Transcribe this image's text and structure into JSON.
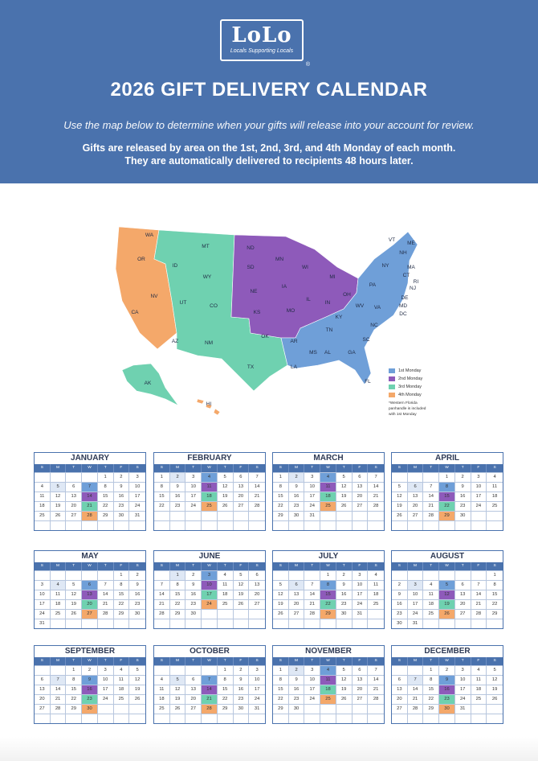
{
  "header": {
    "logo_text": "LoLo",
    "logo_tagline": "Locals Supporting Locals",
    "logo_mark": "®",
    "title": "2026 GIFT DELIVERY CALENDAR",
    "subtitle": "Use the map below to determine when your gifts will release into your account for review.",
    "info_line1": "Gifts are released by area on the 1st, 2nd, 3rd, and 4th Monday of each month.",
    "info_line2": "They are automatically delivered to recipients 48 hours later."
  },
  "colors": {
    "brand": "#4a72ad",
    "monday1": "#6f9fd8",
    "monday2": "#8e5aba",
    "monday3": "#6fd1b0",
    "monday4": "#f4a86a"
  },
  "map": {
    "states": [
      {
        "abbr": "WA",
        "group": 4
      },
      {
        "abbr": "OR",
        "group": 4
      },
      {
        "abbr": "CA",
        "group": 4
      },
      {
        "abbr": "NV",
        "group": 4
      },
      {
        "abbr": "ID",
        "group": 3
      },
      {
        "abbr": "MT",
        "group": 3
      },
      {
        "abbr": "WY",
        "group": 3
      },
      {
        "abbr": "UT",
        "group": 3
      },
      {
        "abbr": "CO",
        "group": 3
      },
      {
        "abbr": "AZ",
        "group": 3
      },
      {
        "abbr": "NM",
        "group": 3
      },
      {
        "abbr": "TX",
        "group": 3
      },
      {
        "abbr": "AK",
        "group": 3
      },
      {
        "abbr": "HI",
        "group": 4
      },
      {
        "abbr": "ND",
        "group": 2
      },
      {
        "abbr": "SD",
        "group": 2
      },
      {
        "abbr": "NE",
        "group": 2
      },
      {
        "abbr": "KS",
        "group": 2
      },
      {
        "abbr": "OK",
        "group": 2
      },
      {
        "abbr": "MN",
        "group": 2
      },
      {
        "abbr": "IA",
        "group": 2
      },
      {
        "abbr": "MO",
        "group": 2
      },
      {
        "abbr": "WI",
        "group": 2
      },
      {
        "abbr": "IL",
        "group": 2
      },
      {
        "abbr": "MI",
        "group": 2
      },
      {
        "abbr": "IN",
        "group": 2
      },
      {
        "abbr": "OH",
        "group": 2
      },
      {
        "abbr": "KY",
        "group": 2
      },
      {
        "abbr": "AR",
        "group": 1
      },
      {
        "abbr": "LA",
        "group": 1
      },
      {
        "abbr": "MS",
        "group": 1
      },
      {
        "abbr": "AL",
        "group": 1
      },
      {
        "abbr": "GA",
        "group": 1
      },
      {
        "abbr": "FL",
        "group": 1
      },
      {
        "abbr": "SC",
        "group": 1
      },
      {
        "abbr": "NC",
        "group": 1
      },
      {
        "abbr": "TN",
        "group": 1
      },
      {
        "abbr": "VA",
        "group": 1
      },
      {
        "abbr": "WV",
        "group": 1
      },
      {
        "abbr": "PA",
        "group": 1
      },
      {
        "abbr": "NY",
        "group": 1
      },
      {
        "abbr": "VT",
        "group": 1
      },
      {
        "abbr": "ME",
        "group": 1
      },
      {
        "abbr": "NH",
        "group": 1
      },
      {
        "abbr": "MA",
        "group": 1
      },
      {
        "abbr": "RI",
        "group": 1
      },
      {
        "abbr": "NJ",
        "group": 1
      },
      {
        "abbr": "DE",
        "group": 1
      },
      {
        "abbr": "MD",
        "group": 1
      },
      {
        "abbr": "DC",
        "group": 1
      },
      {
        "abbr": "CT",
        "group": 1
      }
    ],
    "legend": [
      {
        "label": "1st Monday",
        "color": "#6f9fd8"
      },
      {
        "label": "2nd Monday",
        "color": "#8e5aba"
      },
      {
        "label": "3rd Monday",
        "color": "#6fd1b0"
      },
      {
        "label": "4th Monday",
        "color": "#f4a86a"
      }
    ],
    "legend_note": "*Western Florida panhandle is included with 1st Monday"
  },
  "weekday_headers": [
    "S",
    "M",
    "T",
    "W",
    "T",
    "F",
    "S"
  ],
  "months": [
    {
      "name": "JANUARY",
      "start": 4,
      "days": 31
    },
    {
      "name": "FEBRUARY",
      "start": 0,
      "days": 28
    },
    {
      "name": "MARCH",
      "start": 0,
      "days": 31
    },
    {
      "name": "APRIL",
      "start": 3,
      "days": 30
    },
    {
      "name": "MAY",
      "start": 5,
      "days": 31
    },
    {
      "name": "JUNE",
      "start": 1,
      "days": 30
    },
    {
      "name": "JULY",
      "start": 3,
      "days": 31
    },
    {
      "name": "AUGUST",
      "start": 6,
      "days": 31
    },
    {
      "name": "SEPTEMBER",
      "start": 2,
      "days": 30
    },
    {
      "name": "OCTOBER",
      "start": 4,
      "days": 31
    },
    {
      "name": "NOVEMBER",
      "start": 0,
      "days": 30
    },
    {
      "name": "DECEMBER",
      "start": 2,
      "days": 31
    }
  ]
}
